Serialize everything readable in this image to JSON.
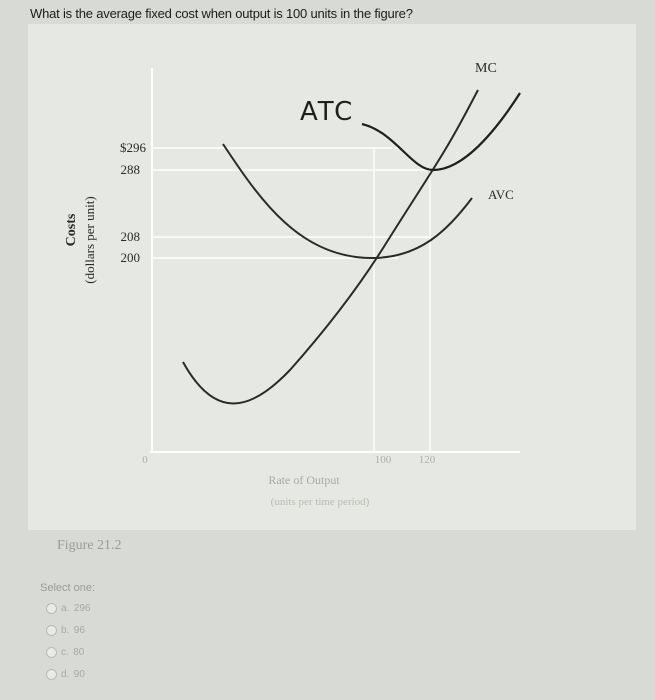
{
  "question": {
    "text": "What is the average fixed cost when output is 100 units in the figure?"
  },
  "figure": {
    "caption": "Figure 21.2"
  },
  "chart_data": {
    "type": "line",
    "ylabel": "Costs",
    "ylabel_units": "(dollars per unit)",
    "xlabel": "Rate of Output",
    "xlabel_units": "(units per time period)",
    "y_ticks": [
      "$296",
      "288",
      "208",
      "200"
    ],
    "y_tick_values": [
      296,
      288,
      208,
      200
    ],
    "x_ticks": [
      "0",
      "100",
      "120"
    ],
    "x_tick_values": [
      0,
      100,
      120
    ],
    "series": [
      {
        "name": "ATC",
        "annotation": "hand-drawn"
      },
      {
        "name": "AVC"
      },
      {
        "name": "MC"
      }
    ],
    "key_points": [
      {
        "x": 100,
        "y": 200,
        "note": "AVC minimum, MC crosses AVC"
      },
      {
        "x": 100,
        "y": 296,
        "note": "ATC at 100 units"
      },
      {
        "x": 120,
        "y": 288,
        "note": "ATC minimum, MC crosses ATC"
      },
      {
        "x": 120,
        "y": 208,
        "note": "AVC at 120 units"
      }
    ],
    "grid": "dashed reference lines",
    "colors": {
      "curve": "#2a2a2a",
      "guides": "#ffffff",
      "labels": "#a6aaa4"
    }
  },
  "quiz": {
    "select_label": "Select one:",
    "options": [
      {
        "letter": "a.",
        "value": "296"
      },
      {
        "letter": "b.",
        "value": "96"
      },
      {
        "letter": "c.",
        "value": "80"
      },
      {
        "letter": "d.",
        "value": "90"
      }
    ]
  }
}
